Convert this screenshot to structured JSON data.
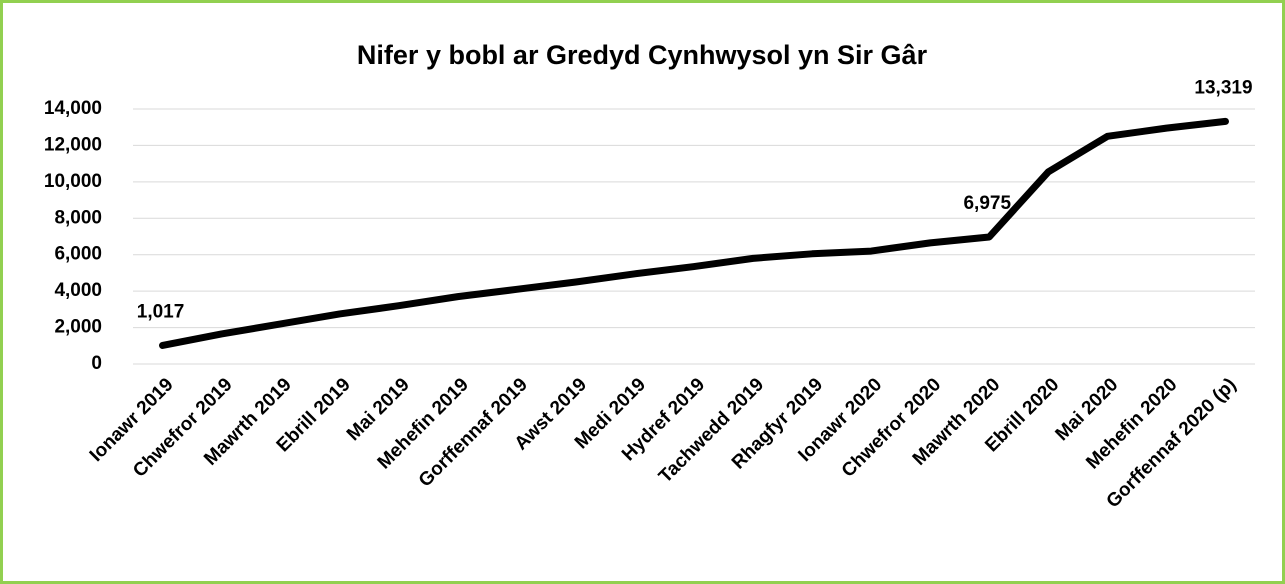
{
  "chart_data": {
    "type": "line",
    "title": "Nifer y bobl ar Gredyd Cynhwysol yn Sir Gâr",
    "categories": [
      "Ionawr 2019",
      "Chwefror 2019",
      "Mawrth 2019",
      "Ebrill 2019",
      "Mai 2019",
      "Mehefin 2019",
      "Gorffennaf 2019",
      "Awst 2019",
      "Medi 2019",
      "Hydref 2019",
      "Tachwedd 2019",
      "Rhagfyr 2019",
      "Ionawr 2020",
      "Chwefror 2020",
      "Mawrth 2020",
      "Ebrill 2020",
      "Mai 2020",
      "Mehefin 2020",
      "Gorffennaf 2020 (p)"
    ],
    "values": [
      1017,
      1650,
      2200,
      2750,
      3200,
      3700,
      4100,
      4500,
      4950,
      5350,
      5800,
      6050,
      6200,
      6650,
      6975,
      10550,
      12500,
      12950,
      13319
    ],
    "value_labels": [
      "1,017",
      null,
      null,
      null,
      null,
      null,
      null,
      null,
      null,
      null,
      null,
      null,
      null,
      null,
      "6,975",
      null,
      null,
      null,
      "13,319"
    ],
    "color": "#000000",
    "ylim": [
      0,
      14000
    ],
    "yticks": [
      0,
      {
        "value": 2000,
        "label": "2,000"
      },
      {
        "value": 4000,
        "label": "4,000"
      },
      {
        "value": 6000,
        "label": "6,000"
      },
      {
        "value": 8000,
        "label": "8,000"
      },
      {
        "value": 10000,
        "label": "10,000"
      },
      {
        "value": 12000,
        "label": "12,000"
      },
      {
        "value": 14000,
        "label": "14,000"
      }
    ],
    "grid": true
  }
}
